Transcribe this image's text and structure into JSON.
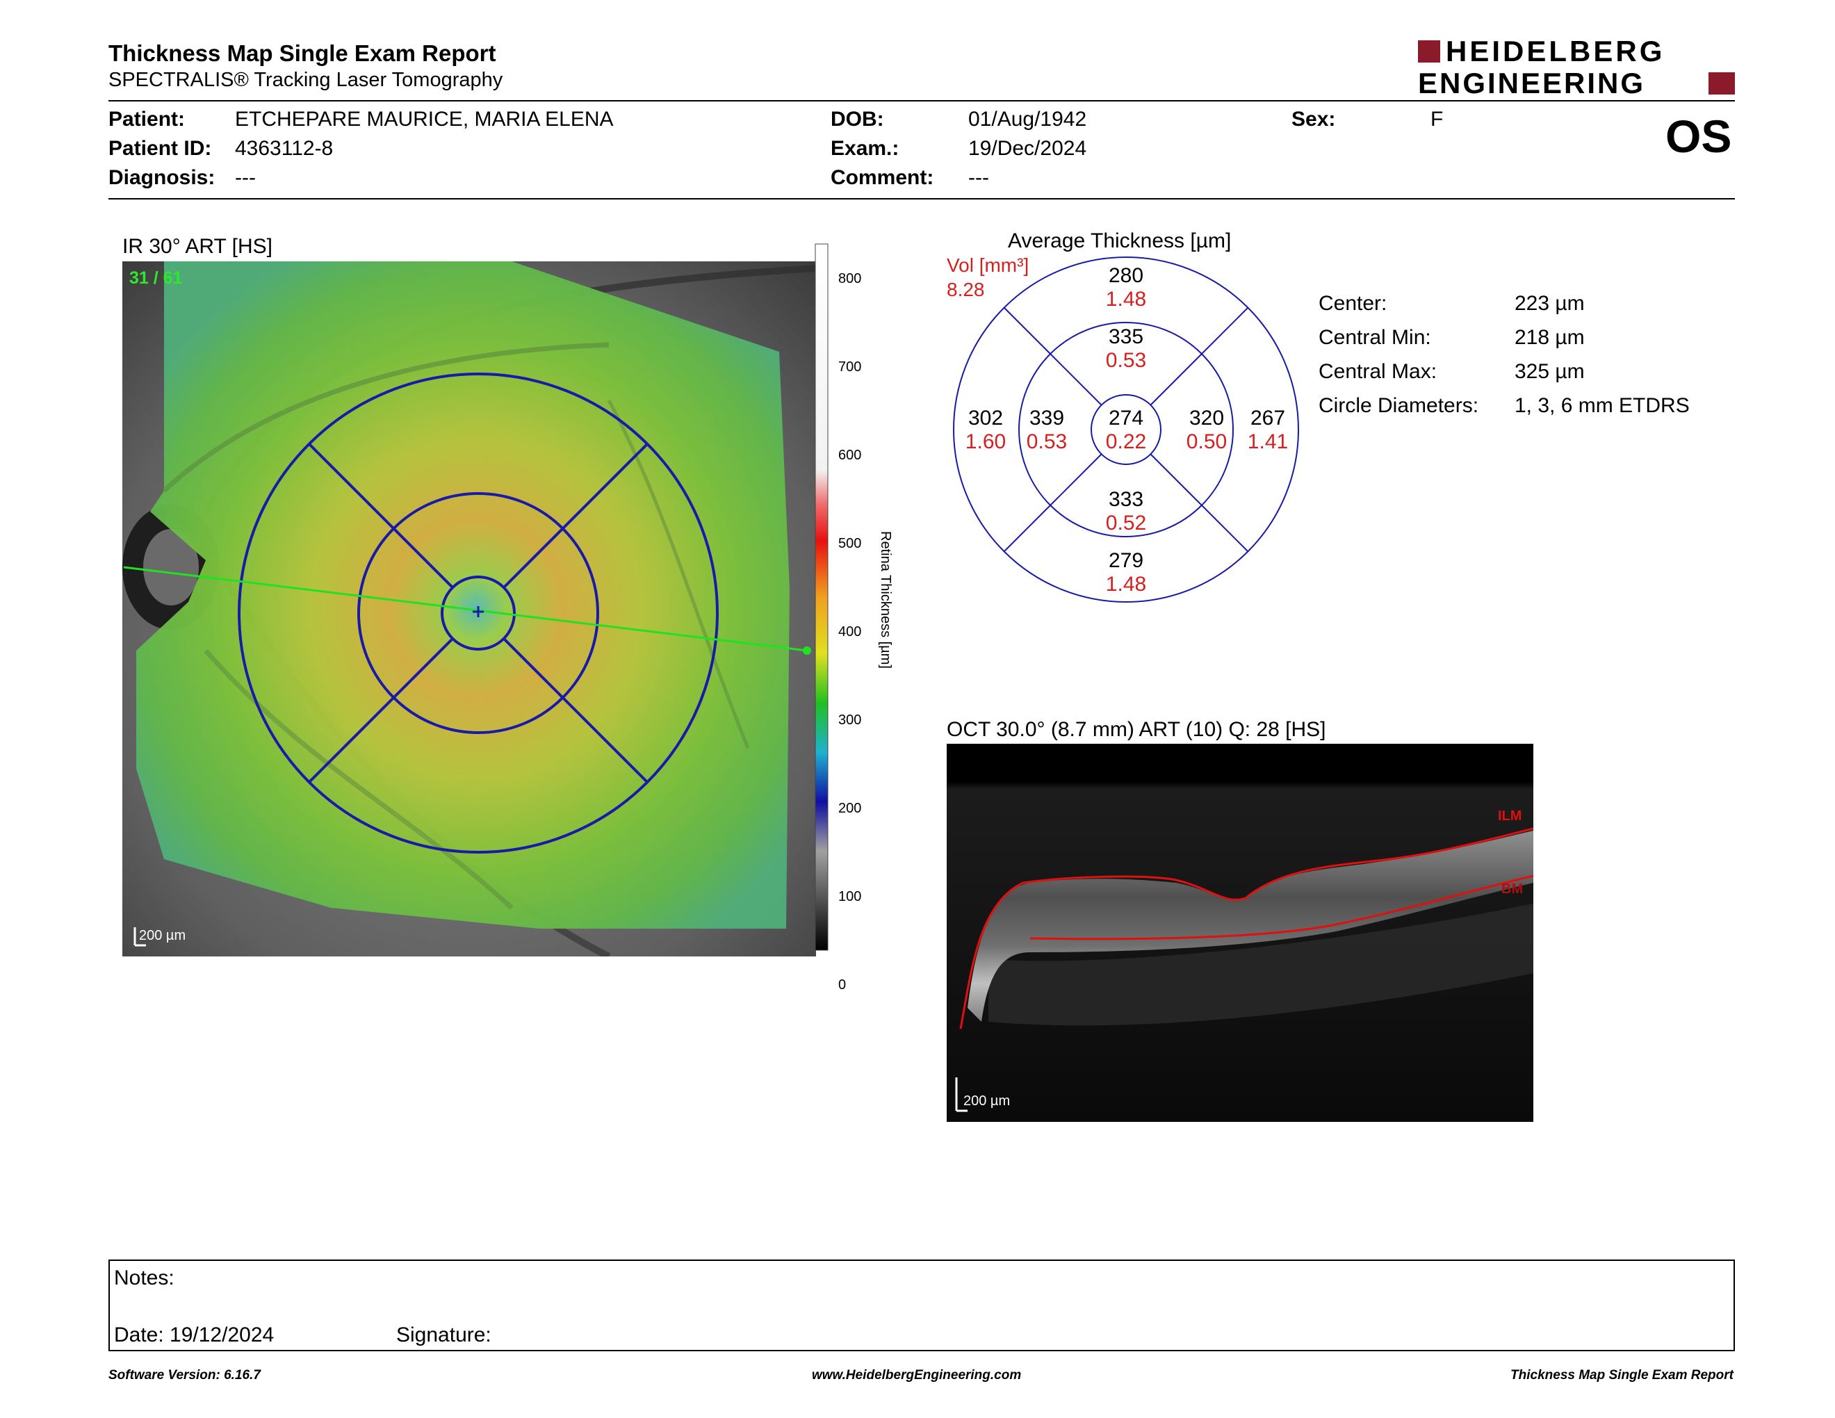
{
  "header": {
    "title": "Thickness Map Single Exam Report",
    "subtitle": "SPECTRALIS® Tracking Laser Tomography",
    "logo_line1": "HEIDELBERG",
    "logo_line2": "ENGINEERING",
    "eye": "OS"
  },
  "patient": {
    "patient_label": "Patient:",
    "patient_value": "ETCHEPARE MAURICE, MARIA ELENA",
    "id_label": "Patient ID:",
    "id_value": "4363112-8",
    "diagnosis_label": "Diagnosis:",
    "diagnosis_value": "---",
    "dob_label": "DOB:",
    "dob_value": "01/Aug/1942",
    "exam_label": "Exam.:",
    "exam_value": "19/Dec/2024",
    "comment_label": "Comment:",
    "comment_value": "---",
    "sex_label": "Sex:",
    "sex_value": "F"
  },
  "ir_image": {
    "title": "IR 30° ART [HS]",
    "frame": "31 / 61",
    "scale": "200 µm",
    "colorbar_label": "Retina Thickness [µm]",
    "colorbar_ticks": [
      "800",
      "700",
      "600",
      "500",
      "400",
      "300",
      "200",
      "100",
      "0"
    ]
  },
  "etdrs": {
    "title": "Average Thickness [µm]",
    "vol_label": "Vol [mm³]",
    "vol_value": "8.28",
    "sectors": {
      "center": {
        "t": "274",
        "v": "0.22"
      },
      "inner_sup": {
        "t": "335",
        "v": "0.53"
      },
      "inner_inf": {
        "t": "333",
        "v": "0.52"
      },
      "inner_nas": {
        "t": "339",
        "v": "0.53"
      },
      "inner_temp": {
        "t": "320",
        "v": "0.50"
      },
      "outer_sup": {
        "t": "280",
        "v": "1.48"
      },
      "outer_inf": {
        "t": "279",
        "v": "1.48"
      },
      "outer_nas": {
        "t": "302",
        "v": "1.60"
      },
      "outer_temp": {
        "t": "267",
        "v": "1.41"
      }
    }
  },
  "stats": [
    {
      "label": "Center:",
      "value": "223 µm"
    },
    {
      "label": "Central Min:",
      "value": "218 µm"
    },
    {
      "label": "Central Max:",
      "value": "325 µm"
    },
    {
      "label": "Circle Diameters:",
      "value": "1, 3, 6 mm ETDRS"
    }
  ],
  "oct": {
    "title": "OCT 30.0° (8.7 mm) ART (10) Q: 28 [HS]",
    "ilm": "ILM",
    "bm": "BM",
    "scale": "200 µm"
  },
  "notes": {
    "notes_label": "Notes:",
    "date_label": "Date: 19/12/2024",
    "signature_label": "Signature:"
  },
  "footer": {
    "left": "Software Version: 6.16.7",
    "center": "www.HeidelbergEngineering.com",
    "right": "Thickness Map Single Exam Report"
  },
  "colors": {
    "brand": "#8b1a2b",
    "etdrs_grid": "#1a1aa8",
    "volume_red": "#d62020",
    "scan_line": "#22e022"
  }
}
